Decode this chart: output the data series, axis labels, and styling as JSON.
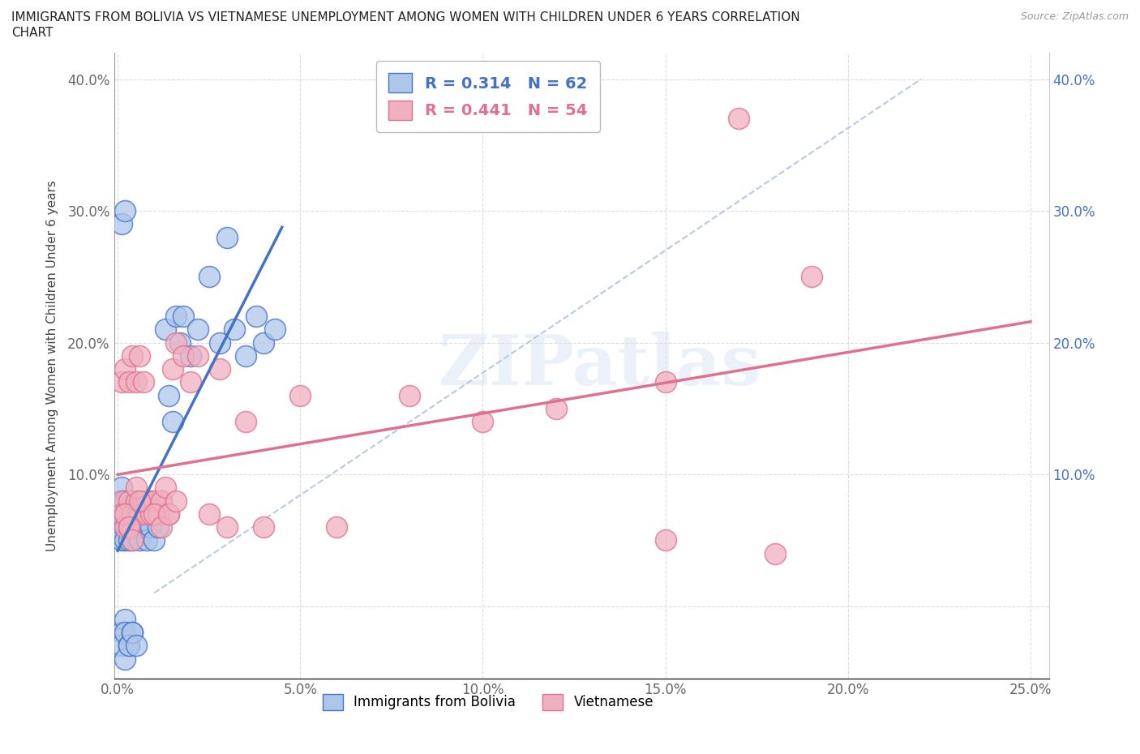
{
  "title_line1": "IMMIGRANTS FROM BOLIVIA VS VIETNAMESE UNEMPLOYMENT AMONG WOMEN WITH CHILDREN UNDER 6 YEARS CORRELATION",
  "title_line2": "CHART",
  "source": "Source: ZipAtlas.com",
  "ylabel": "Unemployment Among Women with Children Under 6 years",
  "legend_label1": "Immigrants from Bolivia",
  "legend_label2": "Vietnamese",
  "R1": 0.314,
  "N1": 62,
  "R2": 0.441,
  "N2": 54,
  "color1": "#aec6ea",
  "color2": "#f0b0c0",
  "line_color1": "#4472c4",
  "line_color2": "#e07090",
  "ref_line_color": "#b0c4e0",
  "xlim": [
    -0.001,
    0.255
  ],
  "ylim": [
    -0.055,
    0.42
  ],
  "xticks": [
    0.0,
    0.05,
    0.1,
    0.15,
    0.2,
    0.25
  ],
  "yticks": [
    0.0,
    0.1,
    0.2,
    0.3,
    0.4
  ],
  "xticklabels": [
    "0.0%",
    "5.0%",
    "10.0%",
    "15.0%",
    "20.0%",
    "25.0%"
  ],
  "yticklabels_left": [
    "",
    "10.0%",
    "20.0%",
    "30.0%",
    "40.0%"
  ],
  "yticklabels_right": [
    "",
    "10.0%",
    "20.0%",
    "30.0%",
    "40.0%"
  ],
  "bolivia_x": [
    0.001,
    0.001,
    0.001,
    0.001,
    0.001,
    0.002,
    0.002,
    0.002,
    0.002,
    0.002,
    0.003,
    0.003,
    0.003,
    0.003,
    0.004,
    0.004,
    0.004,
    0.004,
    0.005,
    0.005,
    0.005,
    0.006,
    0.006,
    0.006,
    0.007,
    0.007,
    0.008,
    0.008,
    0.009,
    0.009,
    0.01,
    0.01,
    0.011,
    0.012,
    0.013,
    0.014,
    0.015,
    0.016,
    0.017,
    0.018,
    0.02,
    0.022,
    0.025,
    0.028,
    0.03,
    0.032,
    0.035,
    0.038,
    0.04,
    0.043,
    0.001,
    0.001,
    0.002,
    0.002,
    0.003,
    0.004,
    0.002,
    0.003,
    0.004,
    0.005,
    0.001,
    0.002
  ],
  "bolivia_y": [
    0.08,
    0.06,
    0.07,
    0.05,
    0.09,
    0.07,
    0.08,
    0.06,
    0.05,
    0.07,
    0.08,
    0.06,
    0.07,
    0.05,
    0.08,
    0.07,
    0.06,
    0.05,
    0.08,
    0.07,
    0.06,
    0.07,
    0.06,
    0.05,
    0.08,
    0.06,
    0.07,
    0.05,
    0.08,
    0.06,
    0.07,
    0.05,
    0.06,
    0.08,
    0.21,
    0.16,
    0.14,
    0.22,
    0.2,
    0.22,
    0.19,
    0.21,
    0.25,
    0.2,
    0.28,
    0.21,
    0.19,
    0.22,
    0.2,
    0.21,
    -0.02,
    -0.03,
    -0.01,
    -0.02,
    -0.03,
    -0.02,
    -0.04,
    -0.03,
    -0.02,
    -0.03,
    0.29,
    0.3
  ],
  "vietnam_x": [
    0.001,
    0.001,
    0.001,
    0.002,
    0.002,
    0.002,
    0.003,
    0.003,
    0.003,
    0.004,
    0.004,
    0.005,
    0.005,
    0.006,
    0.006,
    0.007,
    0.007,
    0.008,
    0.008,
    0.009,
    0.01,
    0.011,
    0.012,
    0.013,
    0.014,
    0.015,
    0.016,
    0.018,
    0.02,
    0.022,
    0.025,
    0.028,
    0.03,
    0.035,
    0.04,
    0.05,
    0.06,
    0.08,
    0.1,
    0.12,
    0.15,
    0.17,
    0.19,
    0.002,
    0.003,
    0.004,
    0.005,
    0.006,
    0.15,
    0.18,
    0.01,
    0.012,
    0.014,
    0.016
  ],
  "vietnam_y": [
    0.08,
    0.07,
    0.17,
    0.07,
    0.18,
    0.06,
    0.08,
    0.17,
    0.06,
    0.19,
    0.07,
    0.08,
    0.17,
    0.07,
    0.19,
    0.08,
    0.17,
    0.07,
    0.08,
    0.07,
    0.08,
    0.07,
    0.08,
    0.09,
    0.07,
    0.18,
    0.2,
    0.19,
    0.17,
    0.19,
    0.07,
    0.18,
    0.06,
    0.14,
    0.06,
    0.16,
    0.06,
    0.16,
    0.14,
    0.15,
    0.17,
    0.37,
    0.25,
    0.07,
    0.06,
    0.05,
    0.09,
    0.08,
    0.05,
    0.04,
    0.07,
    0.06,
    0.07,
    0.08
  ],
  "watermark_text": "ZIPatlas"
}
